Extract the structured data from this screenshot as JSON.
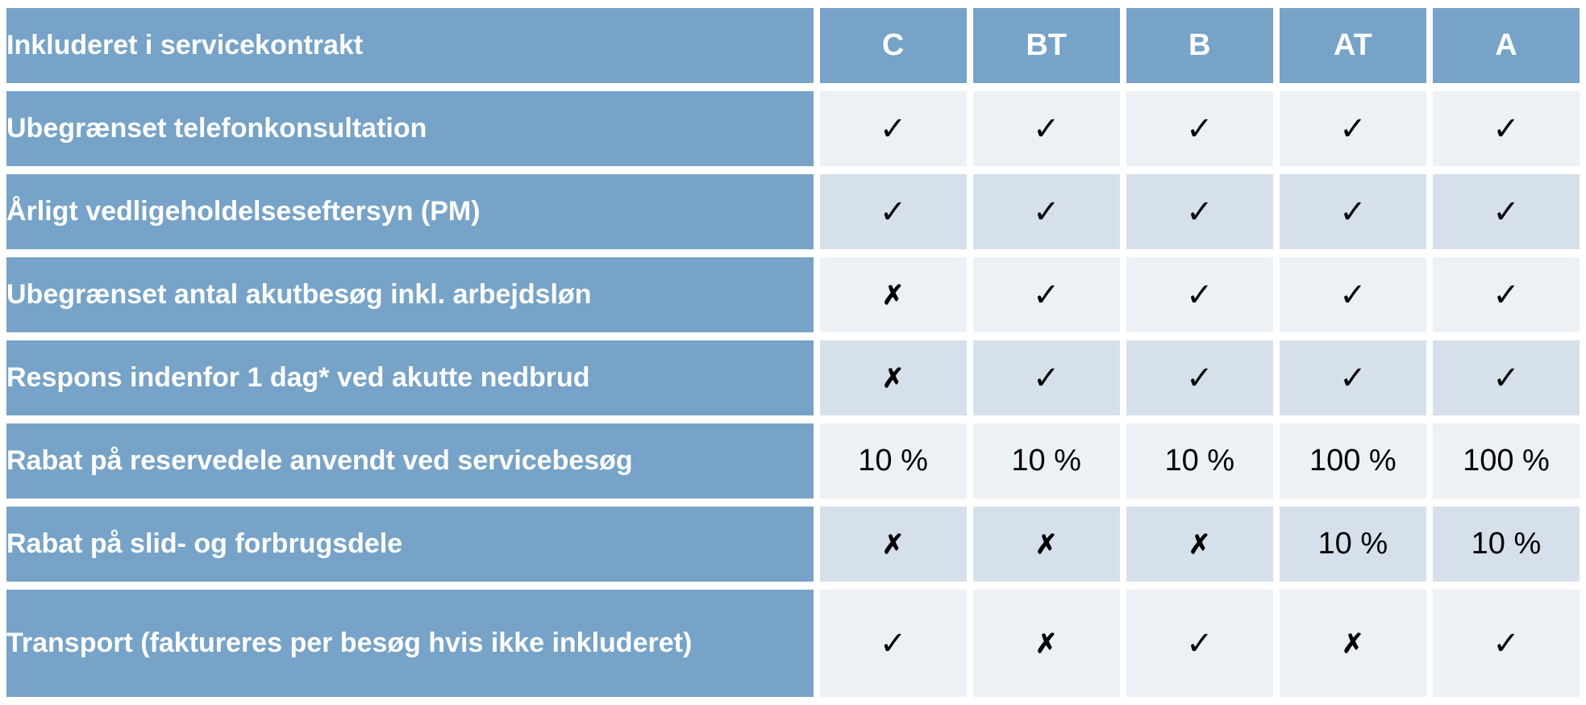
{
  "table": {
    "title": "Inkluderet i servicekontrakt",
    "columns": [
      "C",
      "BT",
      "B",
      "AT",
      "A"
    ],
    "glyphs": {
      "check": "✓",
      "cross": "✗"
    },
    "rows": [
      {
        "label": "Ubegrænset telefonkonsultation",
        "values": [
          "✓",
          "✓",
          "✓",
          "✓",
          "✓"
        ]
      },
      {
        "label": "Årligt vedligeholdelseseftersyn (PM)",
        "values": [
          "✓",
          "✓",
          "✓",
          "✓",
          "✓"
        ]
      },
      {
        "label": "Ubegrænset antal akutbesøg inkl. arbejdsløn",
        "values": [
          "✗",
          "✓",
          "✓",
          "✓",
          "✓"
        ]
      },
      {
        "label": "Respons indenfor 1 dag* ved akutte nedbrud",
        "values": [
          "✗",
          "✓",
          "✓",
          "✓",
          "✓"
        ]
      },
      {
        "label": "Rabat på reservedele anvendt ved servicebesøg",
        "values": [
          "10 %",
          "10 %",
          "10 %",
          "100 %",
          "100 %"
        ]
      },
      {
        "label": "Rabat på slid- og forbrugsdele",
        "values": [
          "✗",
          "✗",
          "✗",
          "10 %",
          "10 %"
        ]
      },
      {
        "label": "Transport (faktureres per besøg hvis ikke inkluderet)",
        "values": [
          "✓",
          "✗",
          "✓",
          "✗",
          "✓"
        ]
      }
    ],
    "colors": {
      "header_blue": "#76A3C7",
      "row_dark": "#D6E0EA",
      "row_light": "#ECF1F6",
      "gutter": "#FFFFFF",
      "value_text": "#000000",
      "label_text": "#FFFFFF"
    }
  }
}
